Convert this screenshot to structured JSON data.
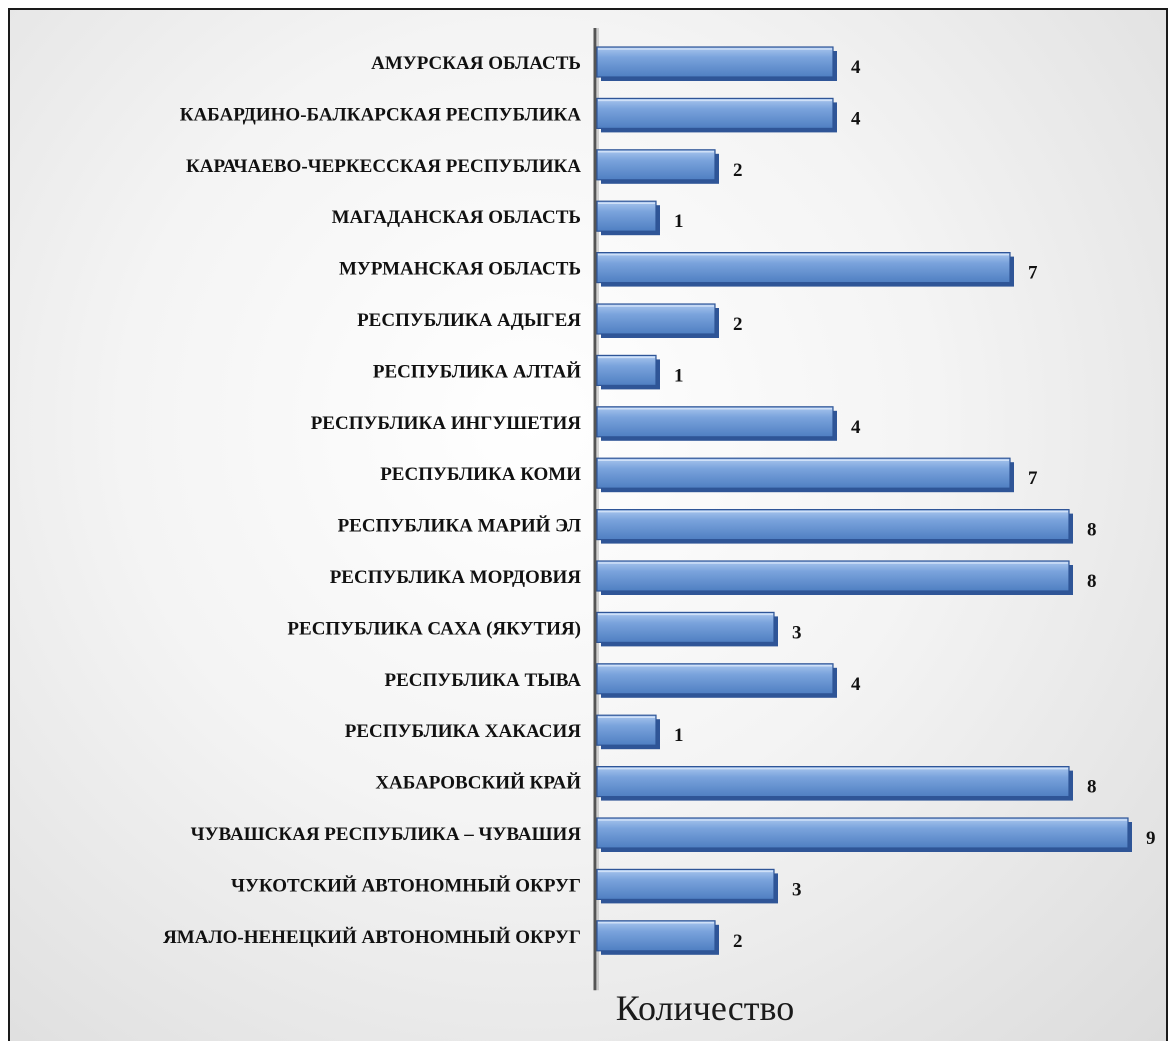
{
  "chart_data": {
    "type": "bar",
    "orientation": "horizontal",
    "categories": [
      "АМУРСКАЯ ОБЛАСТЬ",
      "КАБАРДИНО-БАЛКАРСКАЯ РЕСПУБЛИКА",
      "КАРАЧАЕВО-ЧЕРКЕССКАЯ РЕСПУБЛИКА",
      "МАГАДАНСКАЯ ОБЛАСТЬ",
      "МУРМАНСКАЯ ОБЛАСТЬ",
      "РЕСПУБЛИКА АДЫГЕЯ",
      "РЕСПУБЛИКА АЛТАЙ",
      "РЕСПУБЛИКА ИНГУШЕТИЯ",
      "РЕСПУБЛИКА КОМИ",
      "РЕСПУБЛИКА МАРИЙ ЭЛ",
      "РЕСПУБЛИКА МОРДОВИЯ",
      "РЕСПУБЛИКА САХА (ЯКУТИЯ)",
      "РЕСПУБЛИКА ТЫВА",
      "РЕСПУБЛИКА ХАКАСИЯ",
      "ХАБАРОВСКИЙ КРАЙ",
      "ЧУВАШСКАЯ РЕСПУБЛИКА – ЧУВАШИЯ",
      "ЧУКОТСКИЙ АВТОНОМНЫЙ ОКРУГ",
      "ЯМАЛО-НЕНЕЦКИЙ АВТОНОМНЫЙ ОКРУГ"
    ],
    "values": [
      4,
      4,
      2,
      1,
      7,
      2,
      1,
      4,
      7,
      8,
      8,
      3,
      4,
      1,
      8,
      9,
      3,
      2
    ],
    "xlabel": "Количество",
    "xlim": [
      0,
      9
    ],
    "grid": false,
    "legend": "none",
    "data_labels": true,
    "colors": {
      "bar": "#6a96d4",
      "bar_dark": "#2f5597",
      "bar_light": "#a9c6ee"
    }
  }
}
